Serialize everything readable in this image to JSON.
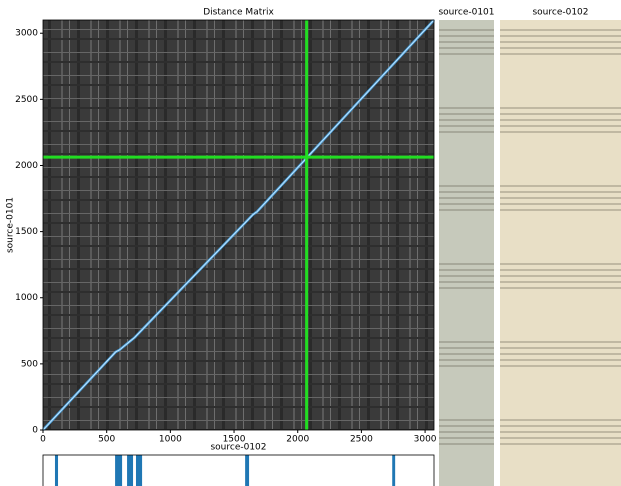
{
  "chart_data": [
    {
      "type": "heatmap",
      "title": "Distance Matrix",
      "x_label": "source-0102",
      "y_label": "source-0101",
      "xlim": [
        0,
        3070
      ],
      "ylim": [
        0,
        3100
      ],
      "xticks": [
        0,
        500,
        1000,
        1500,
        2000,
        2500,
        3000
      ],
      "yticks": [
        0,
        500,
        1000,
        1500,
        2000,
        2500,
        3000
      ],
      "colormap": "gray",
      "path": {
        "color": "#4aa3e0",
        "x": [
          0,
          570,
          600,
          720,
          1620,
          1650,
          1680,
          3070
        ],
        "y": [
          0,
          590,
          605,
          700,
          1600,
          1630,
          1650,
          3100
        ]
      },
      "crosshair": {
        "color": "#22dd22",
        "x": 2070,
        "y": 2063
      }
    },
    {
      "type": "span",
      "color": "#1f77b4",
      "xlim": [
        0,
        3070
      ],
      "spans": [
        [
          94,
          118
        ],
        [
          566,
          621
        ],
        [
          660,
          707
        ],
        [
          730,
          778
        ],
        [
          1587,
          1618
        ],
        [
          2742,
          2765
        ]
      ]
    },
    {
      "type": "image",
      "title": "source-0101",
      "color": "#c6c9bb"
    },
    {
      "type": "image",
      "title": "source-0102",
      "color": "#e8dfc6"
    }
  ]
}
